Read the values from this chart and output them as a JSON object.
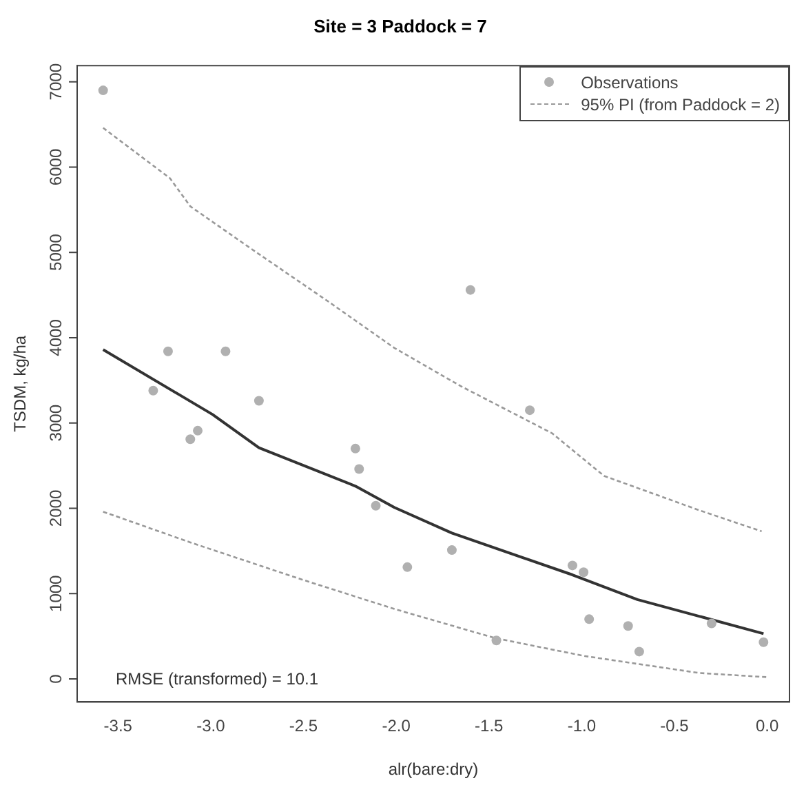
{
  "chart_data": {
    "type": "scatter",
    "title": "Site = 3 Paddock = 7",
    "xlabel": "alr(bare:dry)",
    "ylabel": "TSDM, kg/ha",
    "annotations": [
      "RMSE (transformed) = 10.1"
    ],
    "xlim": [
      -3.72,
      0.12
    ],
    "ylim": [
      -270,
      7190
    ],
    "xticks": [
      -3.5,
      {
        "value": -3,
        "label": "-3.0"
      },
      -2.5,
      {
        "value": -2,
        "label": "-2.0"
      },
      -1.5,
      {
        "value": -1,
        "label": "-1.0"
      },
      -0.5,
      {
        "value": 0,
        "label": "0.0"
      }
    ],
    "yticks": [
      0,
      1000,
      2000,
      3000,
      4000,
      5000,
      6000,
      7000
    ],
    "grid": false,
    "legend": "top right",
    "marker": "circle",
    "series": [
      {
        "name": "Observations",
        "type": "scatter",
        "color": "#b0b0b0",
        "x": [
          -3.58,
          -3.23,
          -2.92,
          -3.31,
          -2.74,
          -3.07,
          -3.11,
          -2.22,
          -2.2,
          -2.11,
          -1.94,
          -1.7,
          -1.6,
          -1.28,
          -1.05,
          -0.99,
          -0.96,
          -1.46,
          -0.75,
          -0.69,
          -0.3,
          -0.02
        ],
        "values": [
          6900,
          3840,
          3840,
          3380,
          3260,
          2910,
          2810,
          2700,
          2460,
          2030,
          1310,
          1510,
          4560,
          3150,
          1330,
          1250,
          700,
          450,
          620,
          320,
          650,
          430
        ]
      },
      {
        "type": "line",
        "color": "#333333",
        "marker": "none",
        "line_style": "solid",
        "x": [
          -3.58,
          -2.99,
          -2.74,
          -2.22,
          -2.01,
          -1.7,
          -1.05,
          -0.7,
          -0.02
        ],
        "values": [
          3860,
          3100,
          2710,
          2260,
          2010,
          1710,
          1220,
          930,
          530
        ]
      },
      {
        "name": "95% PI (from Paddock = 2)",
        "type": "line",
        "color": "#999999",
        "marker": "none",
        "line_style": "dashed",
        "x": [
          -3.58,
          -3.22,
          -3.11,
          -2.78,
          -2.37,
          -2.01,
          -1.65,
          -1.16,
          -0.88,
          -0.37,
          -0.03
        ],
        "values": [
          6460,
          5870,
          5540,
          5040,
          4430,
          3880,
          3430,
          2880,
          2380,
          1980,
          1730
        ]
      },
      {
        "type": "line",
        "color": "#999999",
        "marker": "none",
        "line_style": "dashed",
        "x": [
          -3.58,
          -3.11,
          -2.53,
          -2.01,
          -1.47,
          -0.99,
          -0.37,
          0
        ],
        "values": [
          1960,
          1600,
          1180,
          820,
          480,
          270,
          70,
          20
        ]
      }
    ]
  }
}
